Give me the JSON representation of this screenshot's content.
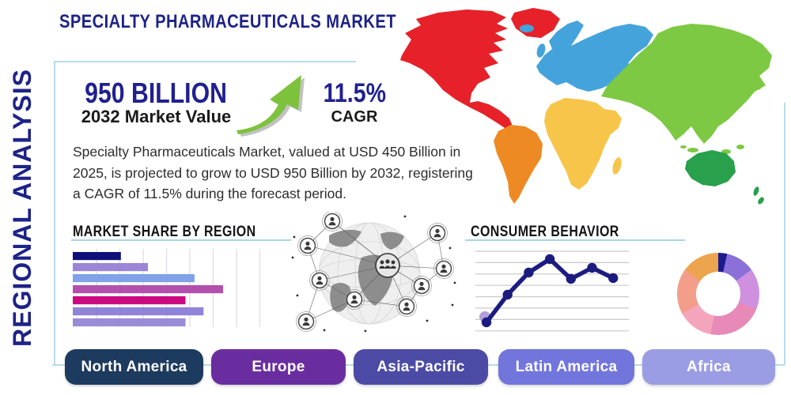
{
  "page": {
    "title": "SPECIALTY PHARMACEUTICALS MARKET",
    "sidebar_label": "REGIONAL ANALYSIS"
  },
  "stats": {
    "market_value": "950 BILLION",
    "market_value_caption": "2032 Market Value",
    "cagr_value": "11.5%",
    "cagr_caption": "CAGR",
    "arrow_icon": "growth-arrow-icon",
    "arrow_color": "#7dc23c",
    "arrow_shadow_color": "#a8a8a8"
  },
  "description": "Specialty Pharmaceuticals Market, valued at USD 450 Billion in 2025, is projected to grow to USD 950 Billion by 2032, registering a CAGR of 11.5% during the forecast period.",
  "colors": {
    "accent_navy": "#1e2387",
    "underline_blue": "#a9d4e8",
    "frame_border": "#b7dcec"
  },
  "map": {
    "name": "world-map-graphic",
    "region_colors": {
      "north_america": "#e62129",
      "greenland": "#e62129",
      "south_america": "#ee8a23",
      "europe": "#45a3dc",
      "africa": "#f6c54a",
      "asia": "#7dc943",
      "oceania": "#28a04c"
    }
  },
  "globe": {
    "name": "globe-network-graphic"
  },
  "chart_data": [
    {
      "type": "bar",
      "title": "MARKET SHARE BY REGION",
      "orientation": "horizontal",
      "values": [
        32,
        50,
        81,
        100,
        75,
        87,
        75
      ],
      "value_unit": "percent-of-longest-bar",
      "bar_colors": [
        "#0f0f7b",
        "#9b85d6",
        "#7fa2e8",
        "#b44fae",
        "#cb0a81",
        "#8f84d8",
        "#9a8bd8"
      ],
      "grid": "vertical",
      "axis_labels": false
    },
    {
      "type": "line",
      "title": "CONSUMER BEHAVIOR",
      "x": [
        1,
        2,
        3,
        4,
        5,
        6,
        7
      ],
      "values": [
        11,
        46,
        74,
        91,
        66,
        80,
        67
      ],
      "ylim": [
        0,
        100
      ],
      "line_color": "#1c1c80",
      "marker_color": "#1c1c80",
      "highlight_marker_color": "#b49fd9",
      "grid": "horizontal",
      "axis_labels": false
    },
    {
      "type": "donut",
      "title": "",
      "segments": [
        {
          "color": "#1b1b8c",
          "value": 3.5
        },
        {
          "color": "#8a70d8",
          "value": 11.5
        },
        {
          "color": "#cf90e0",
          "value": 16
        },
        {
          "color": "#e88ab8",
          "value": 22
        },
        {
          "color": "#f4a5bc",
          "value": 14
        },
        {
          "color": "#f29e8a",
          "value": 18
        },
        {
          "color": "#eca44f",
          "value": 15
        }
      ]
    }
  ],
  "region_buttons": [
    {
      "label": "North America",
      "color": "#1d3a5f"
    },
    {
      "label": "Europe",
      "color": "#6a2da0"
    },
    {
      "label": "Asia-Pacific",
      "color": "#4b4ba6"
    },
    {
      "label": "Latin America",
      "color": "#7175dc"
    },
    {
      "label": "Africa",
      "color": "#9b9de4"
    }
  ]
}
